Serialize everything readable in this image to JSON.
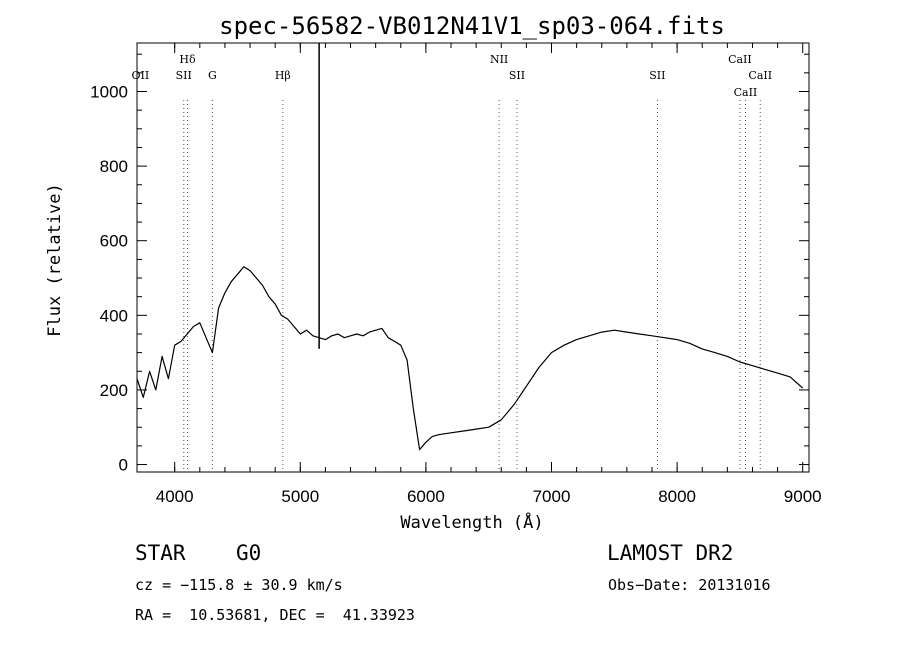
{
  "chart_data": {
    "type": "line",
    "title": "spec-56582-VB012N41V1_sp03-064.fits",
    "xlabel": "Wavelength (Å)",
    "ylabel": "Flux (relative)",
    "xlim": [
      3700,
      9050
    ],
    "ylim": [
      -20,
      1130
    ],
    "x_ticks": [
      4000,
      5000,
      6000,
      7000,
      8000,
      9000
    ],
    "y_ticks": [
      0,
      200,
      400,
      600,
      800,
      1000
    ],
    "grid": false,
    "line_color": "#000000",
    "series": [
      {
        "x": [
          3700,
          3750,
          3800,
          3850,
          3900,
          3950,
          4000,
          4050,
          4100,
          4150,
          4200,
          4250,
          4300,
          4350,
          4400,
          4450,
          4500,
          4550,
          4600,
          4650,
          4700,
          4750,
          4800,
          4850,
          4900,
          4950,
          5000,
          5050,
          5100,
          5150,
          5200,
          5250,
          5300,
          5350,
          5400,
          5450,
          5500,
          5550,
          5600,
          5650,
          5700,
          5750,
          5800,
          5850,
          5900,
          5950,
          6000,
          6050,
          6100,
          6200,
          6300,
          6400,
          6500,
          6600,
          6700,
          6800,
          6900,
          7000,
          7100,
          7200,
          7300,
          7400,
          7500,
          7600,
          7700,
          7800,
          7900,
          8000,
          8100,
          8200,
          8300,
          8400,
          8500,
          8600,
          8700,
          8800,
          8900,
          8950,
          9000
        ],
        "y": [
          230,
          180,
          250,
          200,
          290,
          230,
          320,
          330,
          350,
          370,
          380,
          340,
          300,
          420,
          460,
          490,
          510,
          530,
          520,
          500,
          480,
          450,
          430,
          400,
          390,
          370,
          350,
          360,
          345,
          340,
          335,
          345,
          350,
          340,
          345,
          350,
          345,
          355,
          360,
          365,
          340,
          330,
          320,
          280,
          150,
          40,
          60,
          75,
          80,
          85,
          90,
          95,
          100,
          120,
          160,
          210,
          260,
          300,
          320,
          335,
          345,
          355,
          360,
          355,
          350,
          345,
          340,
          335,
          325,
          310,
          300,
          290,
          275,
          265,
          255,
          245,
          235,
          220,
          205
        ]
      }
    ],
    "annotations": [
      {
        "label": "OII",
        "x": 3727,
        "row": 1,
        "line": false
      },
      {
        "label": "Hδ",
        "x": 4102,
        "row": 0,
        "line": true
      },
      {
        "label": "SII",
        "x": 4072,
        "row": 1,
        "line": true
      },
      {
        "label": "G",
        "x": 4300,
        "row": 1,
        "line": true
      },
      {
        "label": "Hβ",
        "x": 4861,
        "row": 1,
        "line": true
      },
      {
        "label": "NII",
        "x": 6583,
        "row": 0,
        "line": true
      },
      {
        "label": "SII",
        "x": 6725,
        "row": 1,
        "line": true
      },
      {
        "label": "SII",
        "x": 7843,
        "row": 1,
        "line": true
      },
      {
        "label": "CaII",
        "x": 8500,
        "row": 0,
        "line": true
      },
      {
        "label": "CaII",
        "x": 8662,
        "row": 1,
        "line": true
      },
      {
        "label": "CaII",
        "x": 8544,
        "row": 2,
        "line": true
      }
    ],
    "spike": {
      "x": 5150,
      "y_top": 1130,
      "y_bottom": 310
    }
  },
  "footer": {
    "object_class": "STAR",
    "subclass": "G0",
    "survey": "LAMOST DR2",
    "redshift": "cz = −115.8 ± 30.9 km/s",
    "obs_date": "Obs−Date: 20131016",
    "coords": "RA =  10.53681, DEC =  41.33923"
  }
}
